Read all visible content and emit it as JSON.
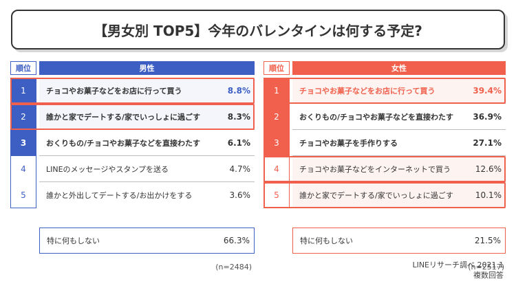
{
  "title": "【男女別 TOP5】今年のバレンタインは何する予定?",
  "chart_data": [
    {
      "type": "table",
      "group": "男性",
      "rank_header": "順位",
      "rows": [
        {
          "rank": "1",
          "label": "チョコやお菓子などをお店に行って買う",
          "value": "8.8%"
        },
        {
          "rank": "2",
          "label": "誰かと家でデートする/家でいっしょに過ごす",
          "value": "8.3%"
        },
        {
          "rank": "3",
          "label": "おくりもの/チョコやお菓子などを直接わたす",
          "value": "6.1%"
        },
        {
          "rank": "4",
          "label": "LINEのメッセージやスタンプを送る",
          "value": "4.7%"
        },
        {
          "rank": "5",
          "label": "誰かと外出してデートする/お出かけをする",
          "value": "3.6%"
        }
      ],
      "none": {
        "label": "特に何もしない",
        "value": "66.3%"
      },
      "n": "(n=2484)"
    },
    {
      "type": "table",
      "group": "女性",
      "rank_header": "順位",
      "rows": [
        {
          "rank": "1",
          "label": "チョコやお菓子などをお店に行って買う",
          "value": "39.4%"
        },
        {
          "rank": "2",
          "label": "おくりもの/チョコやお菓子などを直接わたす",
          "value": "36.9%"
        },
        {
          "rank": "3",
          "label": "チョコやお菓子を手作りする",
          "value": "27.1%"
        },
        {
          "rank": "4",
          "label": "チョコやお菓子などをインターネットで買う",
          "value": "12.6%"
        },
        {
          "rank": "5",
          "label": "誰かと家でデートする/家でいっしょに過ごす",
          "value": "10.1%"
        }
      ],
      "none": {
        "label": "特に何もしない",
        "value": "21.5%"
      },
      "n": "(n=2517)"
    }
  ],
  "colors": {
    "male": "#3d5fc4",
    "female": "#f0604c",
    "highlight": "#f0604c"
  },
  "source": {
    "line1": "LINEリサーチ調べ 2021.1",
    "line2": "複数回答"
  }
}
